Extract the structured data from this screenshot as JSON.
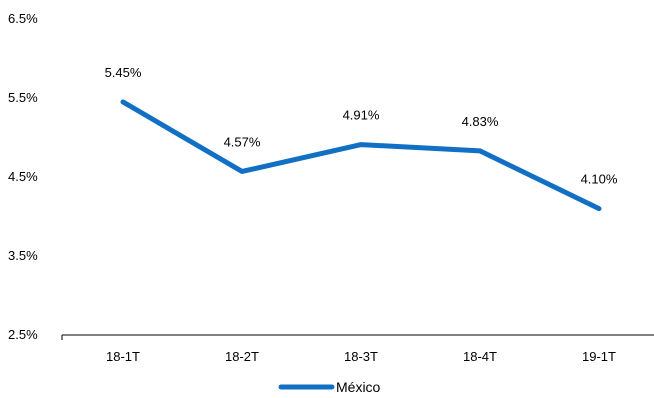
{
  "chart_data": {
    "type": "line",
    "categories": [
      "18-1T",
      "18-2T",
      "18-3T",
      "18-4T",
      "19-1T"
    ],
    "series": [
      {
        "name": "México",
        "values": [
          5.45,
          4.57,
          4.91,
          4.83,
          4.1
        ],
        "color": "#1170C4"
      }
    ],
    "data_labels": [
      "5.45%",
      "4.57%",
      "4.91%",
      "4.83%",
      "4.10%"
    ],
    "y_ticks": [
      6.5,
      5.5,
      4.5,
      3.5,
      2.5
    ],
    "y_tick_labels": [
      "6.5%",
      "5.5%",
      "4.5%",
      "3.5%",
      "2.5%"
    ],
    "ylim": [
      2.5,
      6.5
    ],
    "grid": false,
    "legend_position": "bottom-center",
    "title": "",
    "xlabel": "",
    "ylabel": ""
  }
}
